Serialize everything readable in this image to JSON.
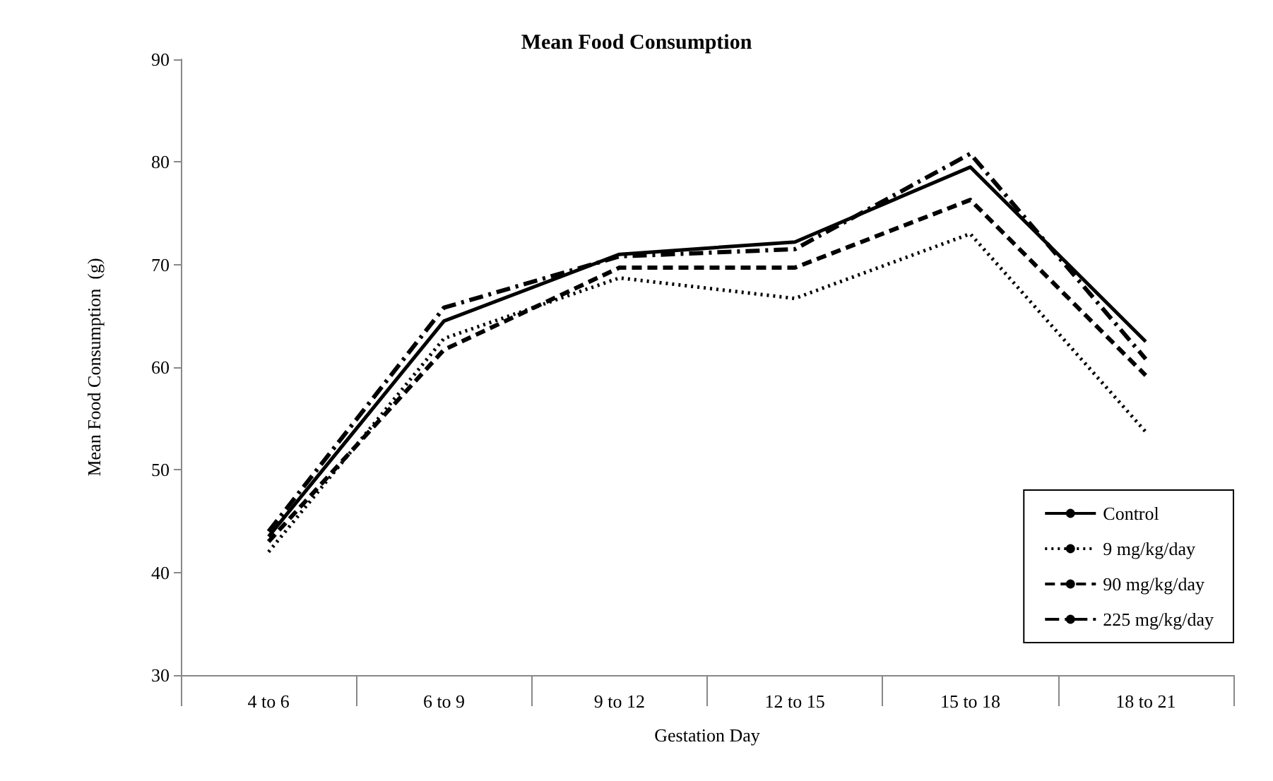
{
  "chart_data": {
    "type": "line",
    "title": "Mean Food Consumption",
    "xlabel": "Gestation Day",
    "ylabel": "Mean Food Consumption  (g)",
    "categories": [
      "4 to 6",
      "6 to 9",
      "9 to 12",
      "12 to 15",
      "15 to 18",
      "18 to 21"
    ],
    "series": [
      {
        "name": "Control",
        "color": "#000000",
        "line_style": "solid",
        "values": [
          43.5,
          64.5,
          71,
          72.2,
          79.5,
          62.5
        ]
      },
      {
        "name": "9 mg/kg/day",
        "color": "#000000",
        "line_style": "dotted",
        "values": [
          42,
          62.8,
          68.7,
          66.7,
          73,
          53.7
        ]
      },
      {
        "name": "90 mg/kg/day",
        "color": "#000000",
        "line_style": "dashed",
        "values": [
          43,
          61.7,
          69.7,
          69.7,
          76.3,
          59.2
        ]
      },
      {
        "name": "225 mg/kg/day",
        "color": "#000000",
        "line_style": "dashdot",
        "values": [
          44,
          65.8,
          70.8,
          71.5,
          80.8,
          60.8
        ]
      }
    ],
    "ylim": [
      30,
      90
    ],
    "yticks": [
      30,
      40,
      50,
      60,
      70,
      80,
      90
    ],
    "grid": false,
    "legend": "bottom right",
    "marker": "none"
  }
}
